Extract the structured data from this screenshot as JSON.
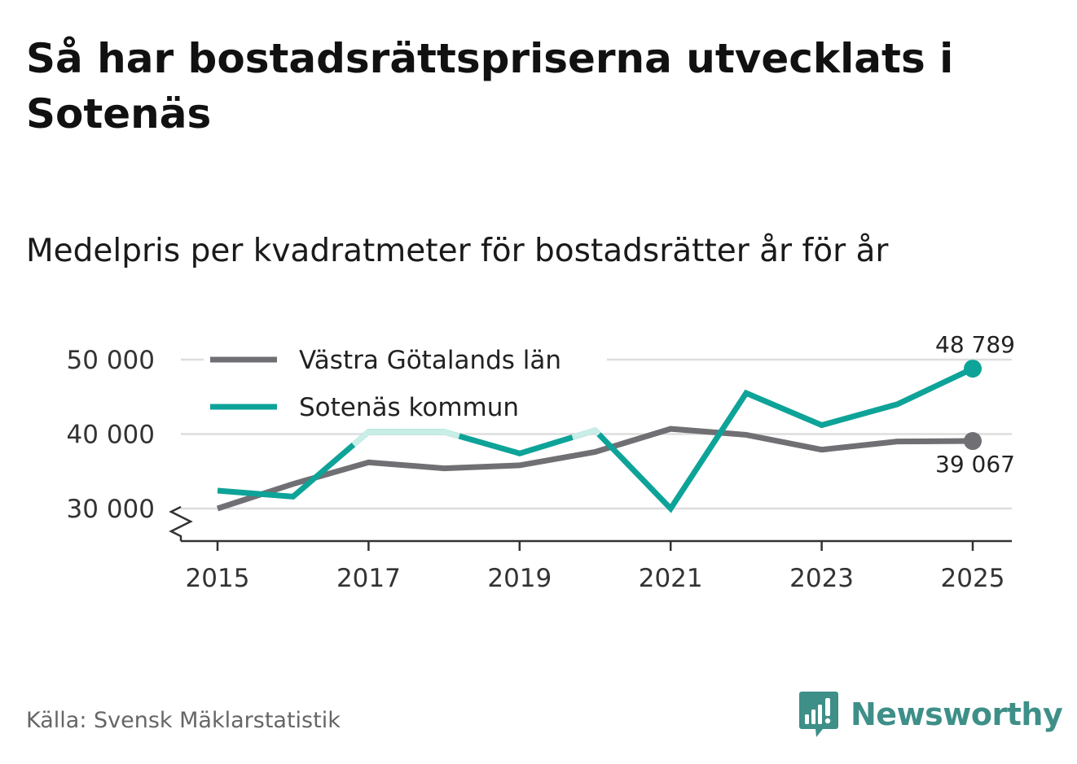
{
  "header": {
    "title": "Så har bostadsrättspriserna utvecklats i Sotenäs",
    "subtitle": "Medelpris per kvadratmeter för bostadsrätter år för år"
  },
  "footer": {
    "source": "Källa: Svensk Mäklarstatistik",
    "brand": "Newsworthy"
  },
  "colors": {
    "region": "#707074",
    "municipality": "#0ea398",
    "municipality_light": "#c9ede7",
    "grid": "#dddddd",
    "axis": "#333333",
    "brand": "#3e8f88"
  },
  "chart_data": {
    "type": "line",
    "title": "Så har bostadsrättspriserna utvecklats i Sotenäs",
    "subtitle": "Medelpris per kvadratmeter för bostadsrätter år för år",
    "xlabel": "",
    "ylabel": "",
    "x": [
      2015,
      2016,
      2017,
      2018,
      2019,
      2020,
      2021,
      2022,
      2023,
      2024,
      2025
    ],
    "xticks": [
      2015,
      2017,
      2019,
      2021,
      2023,
      2025
    ],
    "xtick_labels": [
      "2015",
      "2017",
      "2019",
      "2021",
      "2023",
      "2025"
    ],
    "ylim": [
      30000,
      50000
    ],
    "yticks": [
      30000,
      40000,
      50000
    ],
    "ytick_labels": [
      "30 000",
      "40 000",
      "50 000"
    ],
    "axis_break": true,
    "grid": true,
    "legend_position": "top-left",
    "series": [
      {
        "name": "Västra Götalands län",
        "color": "#707074",
        "values": [
          30000,
          33300,
          36200,
          35400,
          35800,
          37600,
          40700,
          39900,
          37900,
          39000,
          39067
        ],
        "end_label": "39 067"
      },
      {
        "name": "Sotenäs kommun",
        "color": "#0ea398",
        "values": [
          32400,
          31600,
          40300,
          40300,
          37400,
          40500,
          30000,
          45500,
          41200,
          44000,
          48789
        ],
        "light_color": "#c9ede7",
        "light_segments": [
          [
            2016.8,
            2018.2
          ],
          [
            2019.7,
            2020.05
          ]
        ],
        "end_label": "48 789"
      }
    ]
  }
}
